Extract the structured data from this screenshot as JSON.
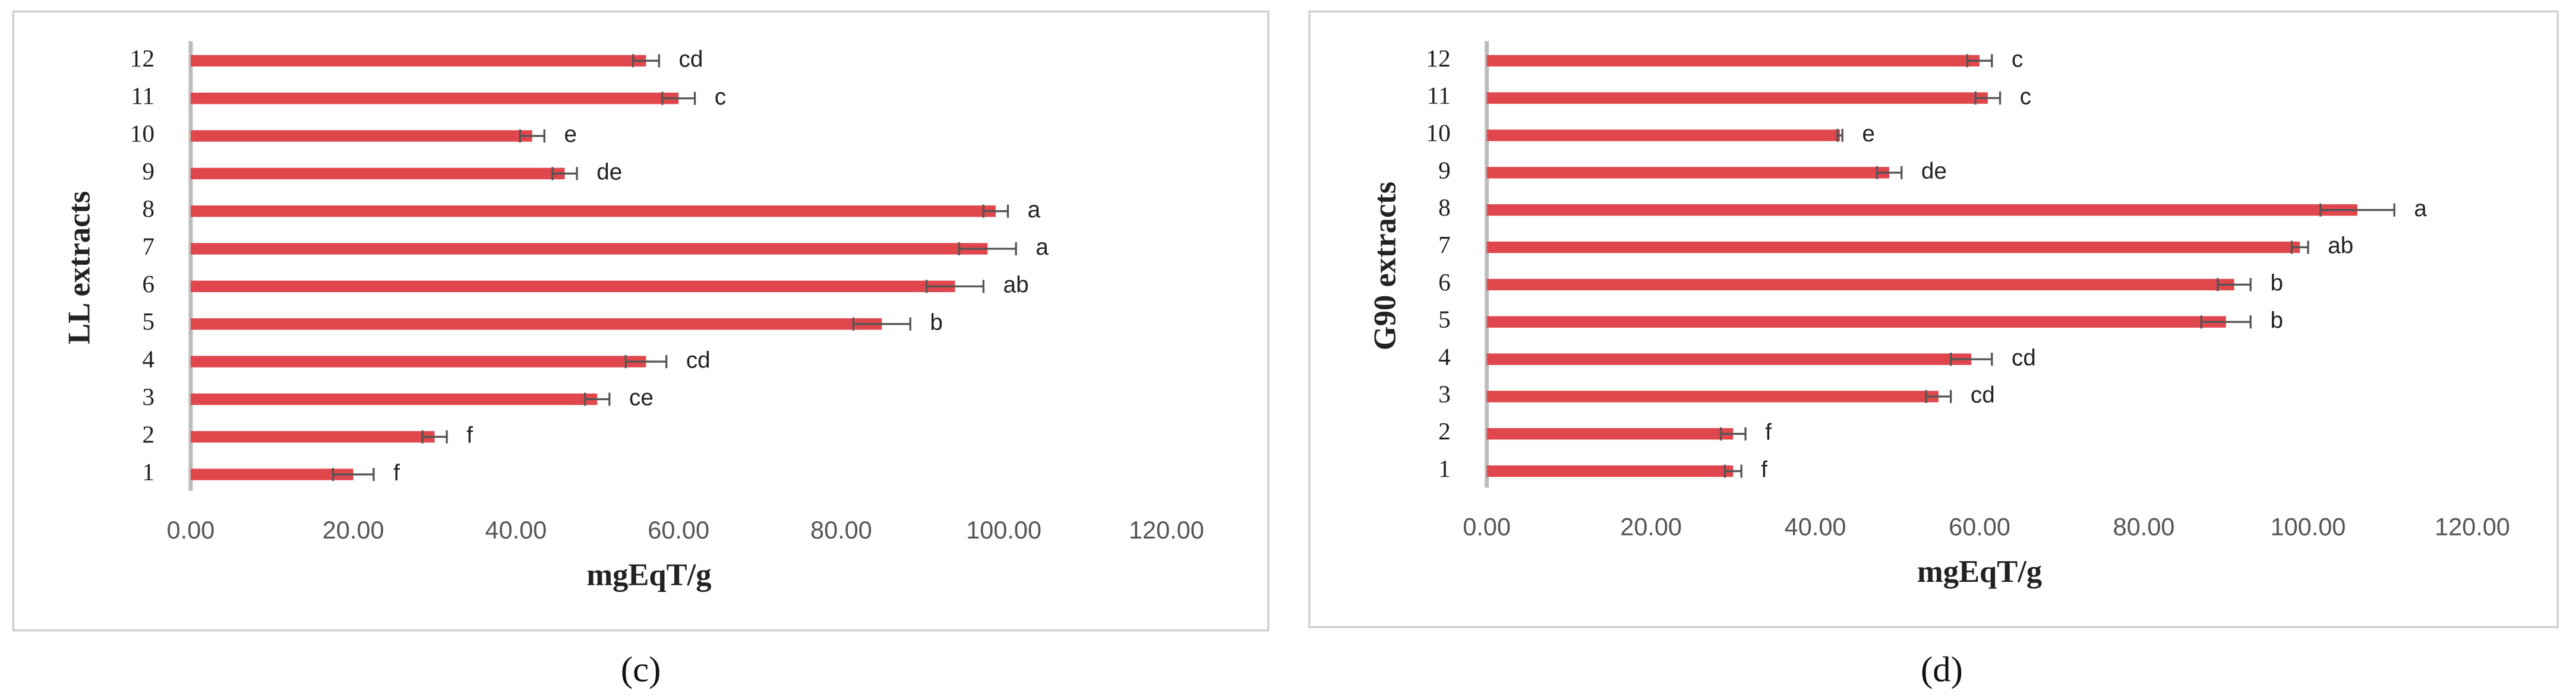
{
  "chart_data": [
    {
      "type": "bar",
      "orientation": "horizontal",
      "caption": "(c)",
      "ylabel": "LL extracts",
      "xlabel": "mgEqT/g",
      "categories": [
        "1",
        "2",
        "3",
        "4",
        "5",
        "6",
        "7",
        "8",
        "9",
        "10",
        "11",
        "12"
      ],
      "values": [
        20,
        30,
        50,
        56,
        85,
        94,
        98,
        99,
        46,
        42,
        60,
        56
      ],
      "errors": [
        2.5,
        1.5,
        1.5,
        2.5,
        3.5,
        3.5,
        3.5,
        1.5,
        1.5,
        1.5,
        2,
        1.6
      ],
      "annotations": [
        "f",
        "f",
        "ce",
        "cd",
        "b",
        "ab",
        "a",
        "a",
        "de",
        "e",
        "c",
        "cd"
      ],
      "color": "#e0474c",
      "xlim": [
        0,
        120
      ],
      "xticks": [
        {
          "value": 0,
          "label": "0.00"
        },
        {
          "value": 20,
          "label": "20.00"
        },
        {
          "value": 40,
          "label": "40.00"
        },
        {
          "value": 60,
          "label": "60.00"
        },
        {
          "value": 80,
          "label": "80.00"
        },
        {
          "value": 100,
          "label": "100.00"
        },
        {
          "value": 120,
          "label": "120.00"
        }
      ],
      "grid": false
    },
    {
      "type": "bar",
      "orientation": "horizontal",
      "caption": "(d)",
      "ylabel": "G90 extracts",
      "xlabel": "mgEqT/g",
      "categories": [
        "1",
        "2",
        "3",
        "4",
        "5",
        "6",
        "7",
        "8",
        "9",
        "10",
        "11",
        "12"
      ],
      "values": [
        30,
        30,
        55,
        59,
        90,
        91,
        99,
        106,
        49,
        43,
        61,
        60
      ],
      "errors": [
        1,
        1.5,
        1.5,
        2.5,
        3,
        2,
        1,
        4.5,
        1.5,
        0.3,
        1.5,
        1.5
      ],
      "annotations": [
        "f",
        "f",
        "cd",
        "cd",
        "b",
        "b",
        "ab",
        "a",
        "de",
        "e",
        "c",
        "c"
      ],
      "color": "#e0474c",
      "xlim": [
        0,
        120
      ],
      "xticks": [
        {
          "value": 0,
          "label": "0.00"
        },
        {
          "value": 20,
          "label": "20.00"
        },
        {
          "value": 40,
          "label": "40.00"
        },
        {
          "value": 60,
          "label": "60.00"
        },
        {
          "value": 80,
          "label": "80.00"
        },
        {
          "value": 100,
          "label": "100.00"
        },
        {
          "value": 120,
          "label": "120.00"
        }
      ],
      "grid": false
    }
  ]
}
